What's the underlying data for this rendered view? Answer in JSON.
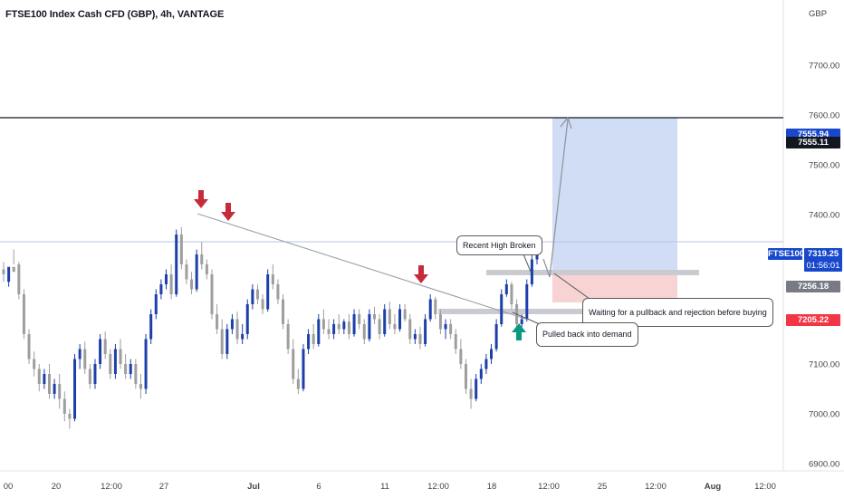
{
  "title": "FTSE100 Index Cash CFD (GBP), 4h, VANTAGE",
  "currency": "GBP",
  "chart_data": {
    "type": "candlestick",
    "y_ticks": [
      "7700.00",
      "7600.00",
      "7500.00",
      "7400.00",
      "7100.00",
      "7000.00",
      "6900.00"
    ],
    "x_ticks": [
      "00",
      "20",
      "12:00",
      "27",
      "Jul",
      "6",
      "11",
      "12:00",
      "18",
      "12:00",
      "25",
      "12:00",
      "Aug",
      "12:00"
    ],
    "ylim": [
      6870,
      7840
    ],
    "levels": {
      "last_price": {
        "label": "FTSE100",
        "value": "7319.25",
        "countdown": "01:56:01",
        "color": "#1848cc"
      },
      "target": {
        "value": "7555.94",
        "color": "#1848cc"
      },
      "resistance": {
        "value": "7555.11",
        "color": "#131722"
      },
      "entry": {
        "value": "7256.18",
        "color": "#787b86"
      },
      "stop": {
        "value": "7205.22",
        "color": "#f23645"
      }
    },
    "candles": [
      [
        7290,
        7305,
        7280,
        7265
      ],
      [
        7265,
        7275,
        7295,
        7255
      ],
      [
        7295,
        7330,
        7285,
        7300
      ],
      [
        7300,
        7305,
        7240,
        7230
      ],
      [
        7240,
        7250,
        7160,
        7150
      ],
      [
        7160,
        7170,
        7110,
        7100
      ],
      [
        7110,
        7125,
        7090,
        7075
      ],
      [
        7090,
        7100,
        7060,
        7045
      ],
      [
        7060,
        7090,
        7080,
        7050
      ],
      [
        7080,
        7100,
        7040,
        7030
      ],
      [
        7040,
        7070,
        7060,
        7030
      ],
      [
        7060,
        7080,
        7030,
        7010
      ],
      [
        7030,
        7045,
        7000,
        6985
      ],
      [
        7000,
        7010,
        6990,
        6970
      ],
      [
        6990,
        7120,
        7110,
        6985
      ],
      [
        7110,
        7140,
        7130,
        7090
      ],
      [
        7130,
        7145,
        7090,
        7080
      ],
      [
        7090,
        7100,
        7060,
        7050
      ],
      [
        7060,
        7110,
        7100,
        7050
      ],
      [
        7100,
        7160,
        7150,
        7090
      ],
      [
        7150,
        7165,
        7120,
        7110
      ],
      [
        7120,
        7130,
        7080,
        7070
      ],
      [
        7080,
        7140,
        7130,
        7070
      ],
      [
        7130,
        7150,
        7100,
        7090
      ],
      [
        7100,
        7120,
        7080,
        7070
      ],
      [
        7080,
        7110,
        7100,
        7070
      ],
      [
        7100,
        7110,
        7060,
        7050
      ],
      [
        7060,
        7080,
        7050,
        7030
      ],
      [
        7050,
        7160,
        7150,
        7040
      ],
      [
        7150,
        7210,
        7200,
        7140
      ],
      [
        7200,
        7250,
        7240,
        7190
      ],
      [
        7240,
        7270,
        7260,
        7230
      ],
      [
        7260,
        7290,
        7280,
        7250
      ],
      [
        7280,
        7300,
        7240,
        7230
      ],
      [
        7240,
        7370,
        7360,
        7235
      ],
      [
        7360,
        7375,
        7300,
        7290
      ],
      [
        7300,
        7310,
        7270,
        7260
      ],
      [
        7270,
        7285,
        7250,
        7240
      ],
      [
        7250,
        7330,
        7320,
        7245
      ],
      [
        7320,
        7345,
        7300,
        7290
      ],
      [
        7300,
        7310,
        7280,
        7270
      ],
      [
        7280,
        7290,
        7200,
        7190
      ],
      [
        7200,
        7220,
        7170,
        7160
      ],
      [
        7170,
        7190,
        7120,
        7110
      ],
      [
        7120,
        7180,
        7170,
        7110
      ],
      [
        7170,
        7200,
        7190,
        7160
      ],
      [
        7190,
        7205,
        7150,
        7140
      ],
      [
        7150,
        7180,
        7160,
        7140
      ],
      [
        7160,
        7230,
        7220,
        7150
      ],
      [
        7220,
        7260,
        7250,
        7210
      ],
      [
        7250,
        7260,
        7230,
        7220
      ],
      [
        7230,
        7240,
        7210,
        7200
      ],
      [
        7210,
        7290,
        7280,
        7205
      ],
      [
        7280,
        7300,
        7260,
        7250
      ],
      [
        7260,
        7270,
        7230,
        7220
      ],
      [
        7230,
        7240,
        7180,
        7170
      ],
      [
        7180,
        7190,
        7130,
        7120
      ],
      [
        7130,
        7150,
        7070,
        7060
      ],
      [
        7070,
        7090,
        7050,
        7040
      ],
      [
        7050,
        7140,
        7130,
        7045
      ],
      [
        7130,
        7170,
        7160,
        7120
      ],
      [
        7160,
        7180,
        7140,
        7130
      ],
      [
        7140,
        7200,
        7190,
        7135
      ],
      [
        7190,
        7210,
        7170,
        7160
      ],
      [
        7170,
        7190,
        7160,
        7150
      ],
      [
        7160,
        7190,
        7180,
        7150
      ],
      [
        7180,
        7200,
        7170,
        7160
      ],
      [
        7170,
        7190,
        7185,
        7160
      ],
      [
        7185,
        7200,
        7160,
        7150
      ],
      [
        7160,
        7210,
        7200,
        7155
      ],
      [
        7200,
        7210,
        7180,
        7170
      ],
      [
        7180,
        7190,
        7150,
        7140
      ],
      [
        7150,
        7210,
        7200,
        7145
      ],
      [
        7200,
        7215,
        7190,
        7180
      ],
      [
        7190,
        7200,
        7160,
        7150
      ],
      [
        7160,
        7220,
        7210,
        7155
      ],
      [
        7210,
        7225,
        7180,
        7170
      ],
      [
        7180,
        7200,
        7170,
        7160
      ],
      [
        7170,
        7220,
        7210,
        7165
      ],
      [
        7210,
        7220,
        7190,
        7185
      ],
      [
        7190,
        7200,
        7150,
        7140
      ],
      [
        7150,
        7170,
        7160,
        7140
      ],
      [
        7160,
        7175,
        7140,
        7130
      ],
      [
        7140,
        7200,
        7190,
        7135
      ],
      [
        7190,
        7240,
        7230,
        7185
      ],
      [
        7230,
        7235,
        7200,
        7190
      ],
      [
        7200,
        7210,
        7170,
        7160
      ],
      [
        7170,
        7190,
        7180,
        7150
      ],
      [
        7180,
        7190,
        7160,
        7150
      ],
      [
        7160,
        7170,
        7130,
        7120
      ],
      [
        7130,
        7150,
        7100,
        7090
      ],
      [
        7100,
        7110,
        7050,
        7040
      ],
      [
        7050,
        7070,
        7030,
        7010
      ],
      [
        7030,
        7080,
        7070,
        7025
      ],
      [
        7070,
        7100,
        7090,
        7060
      ],
      [
        7090,
        7120,
        7110,
        7080
      ],
      [
        7110,
        7140,
        7130,
        7100
      ],
      [
        7130,
        7190,
        7180,
        7125
      ],
      [
        7180,
        7250,
        7240,
        7175
      ],
      [
        7240,
        7270,
        7260,
        7235
      ],
      [
        7260,
        7265,
        7220,
        7210
      ],
      [
        7220,
        7230,
        7180,
        7170
      ],
      [
        7180,
        7200,
        7190,
        7170
      ],
      [
        7190,
        7270,
        7260,
        7185
      ],
      [
        7260,
        7320,
        7310,
        7255
      ],
      [
        7310,
        7325,
        7320,
        7300
      ]
    ]
  },
  "annotations": {
    "recent_high": "Recent High Broken",
    "waiting": "Waiting for a pullback and rejection before buying",
    "pulled_back": "Pulled back into demand"
  }
}
